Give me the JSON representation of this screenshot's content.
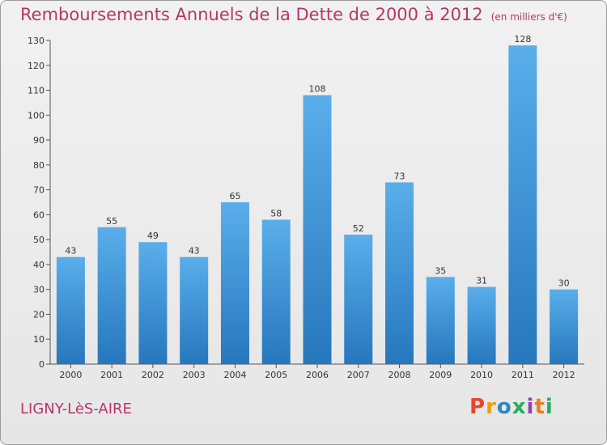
{
  "title": "Remboursements Annuels de la Dette de 2000 à 2012",
  "subtitle": "(en milliers d'€)",
  "commune": "LIGNY-LèS-AIRE",
  "logo": {
    "letters": [
      "P",
      "r",
      "o",
      "x",
      "i",
      "t",
      "i"
    ],
    "colors": [
      "#e8462b",
      "#f39c12",
      "#2e86c1",
      "#27ae60",
      "#8e44ad",
      "#e67e22",
      "#27ae60"
    ]
  },
  "chart_data": {
    "type": "bar",
    "categories": [
      "2000",
      "2001",
      "2002",
      "2003",
      "2004",
      "2005",
      "2006",
      "2007",
      "2008",
      "2009",
      "2010",
      "2011",
      "2012"
    ],
    "values": [
      43,
      55,
      49,
      43,
      65,
      58,
      108,
      52,
      73,
      35,
      31,
      128,
      30
    ],
    "ylim": [
      0,
      130
    ],
    "yticks": [
      0,
      10,
      20,
      30,
      40,
      50,
      60,
      70,
      80,
      90,
      100,
      110,
      120,
      130
    ],
    "grid": false,
    "bar_color": "#3f97d9"
  }
}
